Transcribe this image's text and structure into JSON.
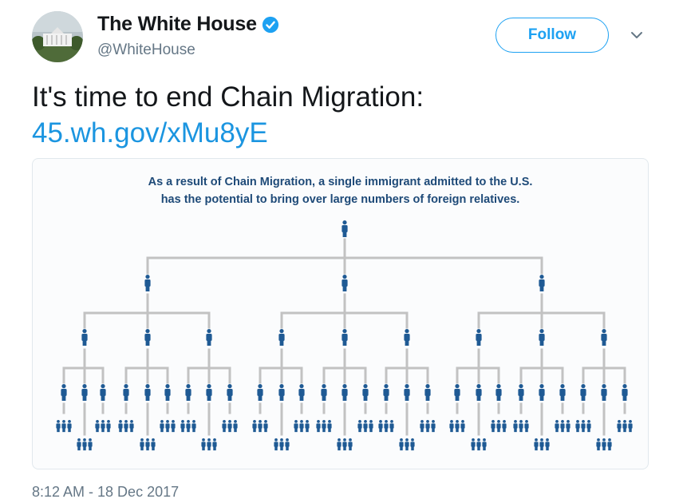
{
  "tweet": {
    "display_name": "The White House",
    "handle": "@WhiteHouse",
    "follow_label": "Follow",
    "text": "It's time to end Chain Migration:",
    "link": "45.wh.gov/xMu8yE",
    "timestamp": "8:12 AM - 18 Dec 2017"
  },
  "infographic": {
    "caption_line1": "As a result of Chain Migration, a single immigrant admitted to the U.S.",
    "caption_line2": "has the potential to bring over large numbers of foreign relatives."
  },
  "colors": {
    "accent": "#1da1f2",
    "link": "#1b95e0",
    "figure": "#1f5a94",
    "connector": "#c2c2c2",
    "caption": "#1e4a78"
  },
  "icons": {
    "verified": "verified-badge-icon",
    "caret": "chevron-down-icon",
    "person": "person-icon"
  }
}
